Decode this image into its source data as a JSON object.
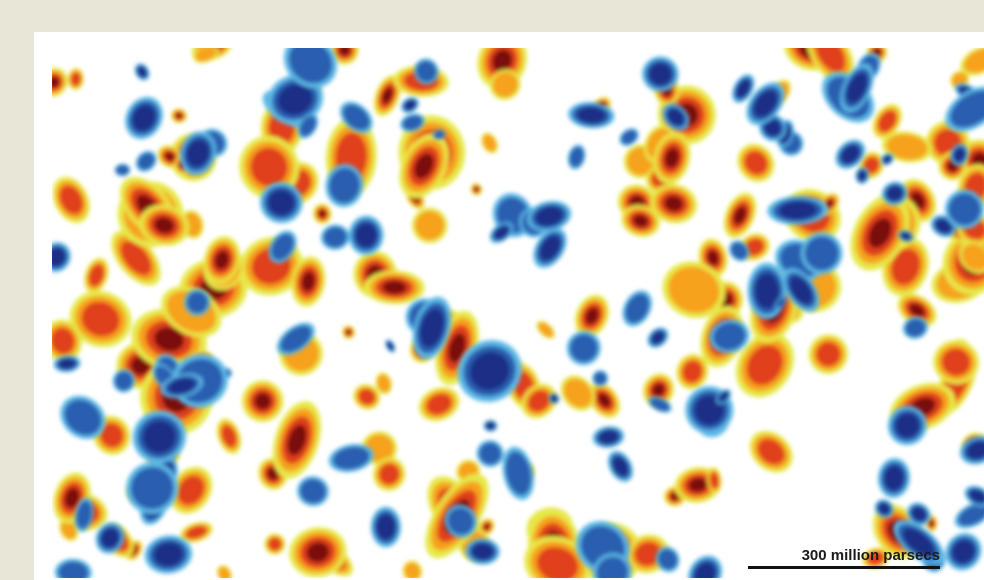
{
  "figure": {
    "scale_bar_label": "300 million parsecs"
  },
  "palette": {
    "background": "#e8e6d6",
    "high": "#7b0d0d",
    "mid_high": "#e0401a",
    "warm": "#f6a21f",
    "edge": "#e6e84a",
    "cool_edge": "#5bb8e6",
    "low": "#2a5fb0",
    "lowest": "#1c2d86"
  }
}
